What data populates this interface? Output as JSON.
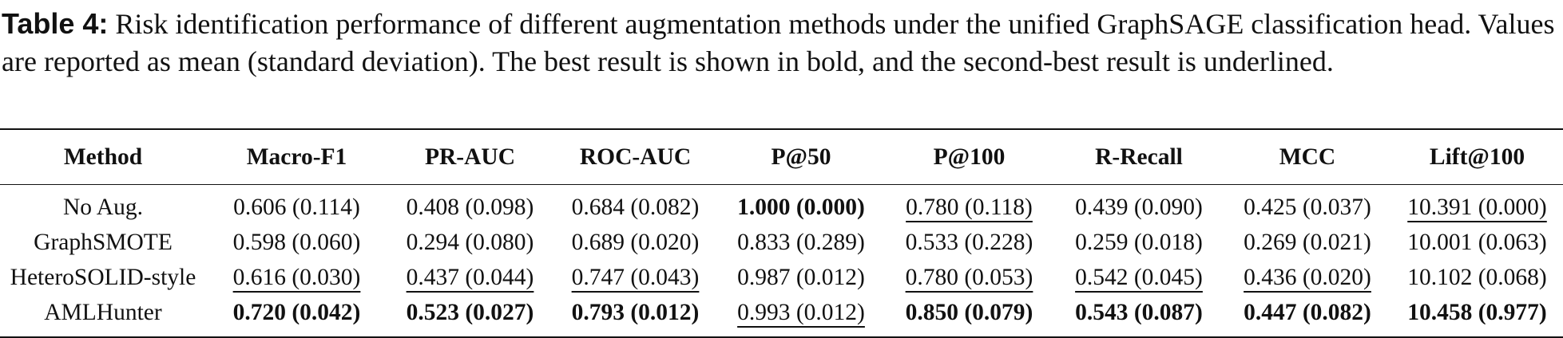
{
  "caption": {
    "label": "Table 4:",
    "text": "Risk identification performance of different augmentation methods under the unified GraphSAGE classification head. Values are reported as mean (standard deviation). The best result is shown in bold, and the second-best result is underlined."
  },
  "table": {
    "header": [
      "Method",
      "Macro-F1",
      "PR-AUC",
      "ROC-AUC",
      "P@50",
      "P@100",
      "R-Recall",
      "MCC",
      "Lift@100"
    ],
    "rows": [
      [
        "No Aug.",
        "0.606 (0.114)",
        "0.408 (0.098)",
        "0.684 (0.082)",
        "1.000 (0.000)",
        "0.780 (0.118)",
        "0.439 (0.090)",
        "0.425 (0.037)",
        "10.391 (0.000)"
      ],
      [
        "GraphSMOTE",
        "0.598 (0.060)",
        "0.294 (0.080)",
        "0.689 (0.020)",
        "0.833 (0.289)",
        "0.533 (0.228)",
        "0.259 (0.018)",
        "0.269 (0.021)",
        "10.001 (0.063)"
      ],
      [
        "HeteroSOLID-style",
        "0.616 (0.030)",
        "0.437 (0.044)",
        "0.747 (0.043)",
        "0.987 (0.012)",
        "0.780 (0.053)",
        "0.542 (0.045)",
        "0.436 (0.020)",
        "10.102 (0.068)"
      ],
      [
        "AMLHunter",
        "0.720 (0.042)",
        "0.523 (0.027)",
        "0.793 (0.012)",
        "0.993 (0.012)",
        "0.850 (0.079)",
        "0.543 (0.087)",
        "0.447 (0.082)",
        "10.458 (0.977)"
      ]
    ]
  }
}
